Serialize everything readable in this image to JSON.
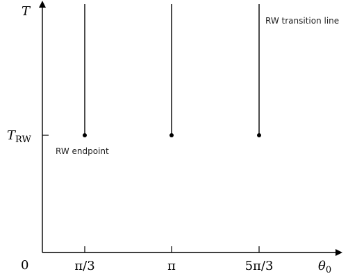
{
  "axes": {
    "y_label": "T",
    "x_label_base": "θ",
    "x_label_sub": "0",
    "y_tick_label_base": "T",
    "y_tick_label_sub": "RW",
    "origin_label": "0",
    "x_tick_labels": [
      "π/3",
      "π",
      "5π/3"
    ]
  },
  "annotations": {
    "transition_line_label": "RW transition line",
    "endpoint_label": "RW endpoint"
  },
  "colors": {
    "line": "#000000",
    "text": "#222222"
  }
}
